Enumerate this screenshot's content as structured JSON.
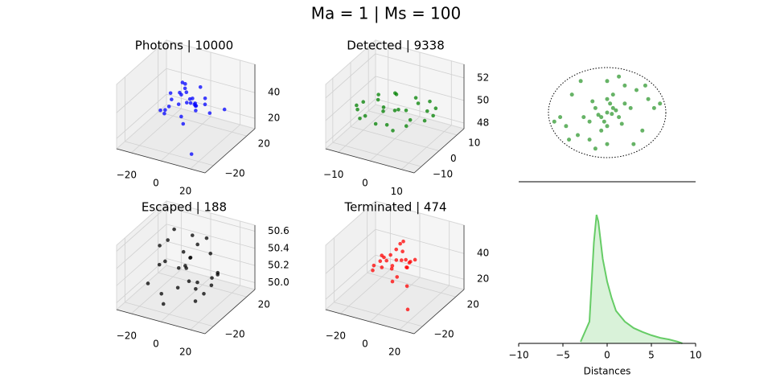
{
  "title": "Ma = 1  |   Ms = 100",
  "chart_data": [
    {
      "type": "scatter3d",
      "title": "Photons | 10000",
      "color": "#0000ff",
      "xlim": [
        -30,
        30
      ],
      "ylim": [
        -30,
        30
      ],
      "zlim": [
        12,
        62
      ],
      "xticks": [
        {
          "value": -20,
          "label": "−20"
        },
        0,
        20
      ],
      "yticks": [
        {
          "value": -20,
          "label": "−20"
        },
        20
      ],
      "zticks": [
        20,
        40
      ],
      "x": [
        -12,
        -8,
        -5,
        -3,
        0,
        2,
        4,
        6,
        9,
        12,
        -10,
        -6,
        -2,
        1,
        3,
        5,
        8,
        11,
        -14,
        14,
        -4,
        7,
        -1,
        10,
        -7,
        18,
        -20,
        15,
        -9,
        5
      ],
      "y": [
        3,
        -6,
        8,
        -2,
        5,
        -9,
        1,
        7,
        -4,
        2,
        -8,
        10,
        -5,
        -1,
        6,
        -3,
        9,
        -7,
        0,
        4,
        -10,
        -2,
        3,
        -6,
        7,
        -25,
        5,
        20,
        12,
        -12
      ],
      "z": [
        42,
        38,
        45,
        48,
        40,
        35,
        44,
        50,
        39,
        46,
        33,
        47,
        41,
        49,
        37,
        43,
        36,
        45,
        30,
        34,
        47,
        42,
        38,
        44,
        40,
        20,
        25,
        28,
        46,
        32
      ]
    },
    {
      "type": "scatter3d",
      "title": "Detected | 9338",
      "color": "#008000",
      "xlim": [
        -14,
        14
      ],
      "ylim": [
        -14,
        14
      ],
      "zlim": [
        47.5,
        53.2
      ],
      "xticks": [
        {
          "value": -10,
          "label": "−10"
        },
        0,
        10
      ],
      "yticks": [
        {
          "value": -10,
          "label": "−10"
        },
        0,
        10
      ],
      "zticks": [
        48,
        50,
        52
      ],
      "x": [
        -10,
        -8,
        -6,
        -4,
        -2,
        0,
        2,
        4,
        6,
        8,
        10,
        -9,
        -5,
        -1,
        3,
        7,
        9,
        -7,
        -3,
        1,
        5,
        11,
        -11,
        0,
        6,
        -6
      ],
      "y": [
        0,
        5,
        -6,
        8,
        -3,
        2,
        -8,
        6,
        -2,
        4,
        -1,
        -5,
        9,
        -9,
        1,
        -6,
        7,
        3,
        -1,
        10,
        -10,
        2,
        -2,
        0,
        9,
        -9
      ],
      "z": [
        50,
        50.1,
        49.9,
        50,
        50.2,
        49.8,
        50,
        50.1,
        49.9,
        50,
        50,
        50.1,
        49.9,
        50,
        50.1,
        50,
        49.9,
        50,
        50.2,
        49.8,
        50,
        50.1,
        49.9,
        50,
        50,
        50.1
      ]
    },
    {
      "type": "scatter",
      "color": "#008000",
      "xlim": [
        -10,
        10
      ],
      "ylim": [
        -10,
        10
      ],
      "radius": 10,
      "x": [
        0,
        1,
        -1,
        2,
        -2,
        0.5,
        -0.5,
        1.5,
        -1.5,
        3,
        -3,
        0,
        0,
        2.5,
        -2.5,
        4,
        -4,
        1,
        -1,
        5,
        -5,
        6,
        -6,
        7,
        -7,
        8,
        -8,
        3,
        -3,
        0,
        0,
        9,
        -9,
        4.5,
        -4.5,
        6.5,
        -6.5,
        2,
        -2,
        0.8
      ],
      "y": [
        0,
        1,
        -1,
        -1,
        1,
        2,
        -2,
        0.5,
        -0.5,
        2,
        -2,
        3,
        -3,
        -2.5,
        2.5,
        1,
        -1,
        4,
        -4,
        5,
        -5,
        -4,
        4,
        3,
        -3,
        1,
        -1,
        6,
        -6,
        7,
        -7,
        2,
        -2,
        -7,
        7,
        6,
        -6,
        8,
        -8,
        -0.3
      ]
    },
    {
      "type": "scatter3d",
      "title": "Escaped | 188",
      "color": "#000000",
      "xlim": [
        -30,
        30
      ],
      "ylim": [
        -30,
        30
      ],
      "zlim": [
        49.92,
        50.67
      ],
      "xticks": [
        {
          "value": -20,
          "label": "−20"
        },
        0,
        20
      ],
      "yticks": [
        {
          "value": -20,
          "label": "−20"
        },
        20
      ],
      "zticks": [
        {
          "value": 50,
          "label": "50.0"
        },
        50.2,
        50.4,
        50.6
      ],
      "x": [
        -20,
        -15,
        -10,
        -5,
        0,
        5,
        10,
        15,
        20,
        -18,
        -12,
        -6,
        2,
        8,
        14,
        18,
        -16,
        -8,
        0,
        6,
        12,
        -14,
        -2,
        4,
        16,
        10,
        -10,
        20
      ],
      "y": [
        -10,
        5,
        15,
        -18,
        8,
        -5,
        12,
        -15,
        3,
        18,
        -8,
        10,
        -12,
        0,
        6,
        -20,
        -3,
        20,
        14,
        -10,
        -16,
        0,
        -6,
        18,
        10,
        4,
        -14,
        -4
      ],
      "z": [
        50.1,
        50.5,
        50.3,
        50.0,
        50.6,
        50.2,
        50.4,
        50.1,
        50.3,
        50.5,
        50.0,
        50.2,
        50.4,
        50.6,
        50.1,
        50.3,
        50.5,
        50.2,
        50.0,
        50.4,
        50.6,
        50.3,
        50.1,
        50.5,
        50.2,
        50.0,
        50.4,
        50.3
      ]
    },
    {
      "type": "scatter3d",
      "title": "Terminated | 474",
      "color": "#ff0000",
      "xlim": [
        -30,
        30
      ],
      "ylim": [
        -30,
        30
      ],
      "zlim": [
        12,
        62
      ],
      "xticks": [
        {
          "value": -20,
          "label": "−20"
        },
        0,
        20
      ],
      "yticks": [
        {
          "value": -20,
          "label": "−20"
        },
        20
      ],
      "zticks": [
        20,
        40
      ],
      "x": [
        -10,
        -6,
        -3,
        0,
        3,
        6,
        10,
        -8,
        -4,
        1,
        5,
        9,
        -12,
        12,
        -2,
        4,
        7,
        -6,
        0,
        8,
        -15,
        15,
        20,
        -1,
        3,
        -9
      ],
      "y": [
        2,
        -5,
        7,
        -3,
        4,
        -8,
        1,
        9,
        -6,
        0,
        6,
        -2,
        -4,
        3,
        10,
        -10,
        5,
        -7,
        8,
        -1,
        0,
        -12,
        -20,
        12,
        -9,
        6
      ],
      "z": [
        42,
        38,
        46,
        40,
        48,
        36,
        44,
        39,
        47,
        43,
        35,
        41,
        37,
        45,
        49,
        33,
        40,
        44,
        38,
        46,
        30,
        34,
        22,
        50,
        42,
        36
      ]
    },
    {
      "type": "kde",
      "color": "#66cc66",
      "xlabel": "Distances",
      "xlim": [
        -10,
        10
      ],
      "ylim": [
        0,
        0.42
      ],
      "xticks": [
        {
          "value": -10,
          "label": "−10"
        },
        {
          "value": -5,
          "label": "−5"
        },
        0,
        5,
        10
      ],
      "x": [
        -3,
        -2,
        -1.5,
        -1.2,
        -1,
        -0.5,
        0,
        0.5,
        1,
        2,
        3,
        4,
        5,
        6,
        7,
        8,
        8.5
      ],
      "values": [
        0.005,
        0.067,
        0.31,
        0.395,
        0.375,
        0.26,
        0.19,
        0.14,
        0.1,
        0.067,
        0.047,
        0.035,
        0.025,
        0.017,
        0.012,
        0.005,
        0
      ]
    }
  ]
}
